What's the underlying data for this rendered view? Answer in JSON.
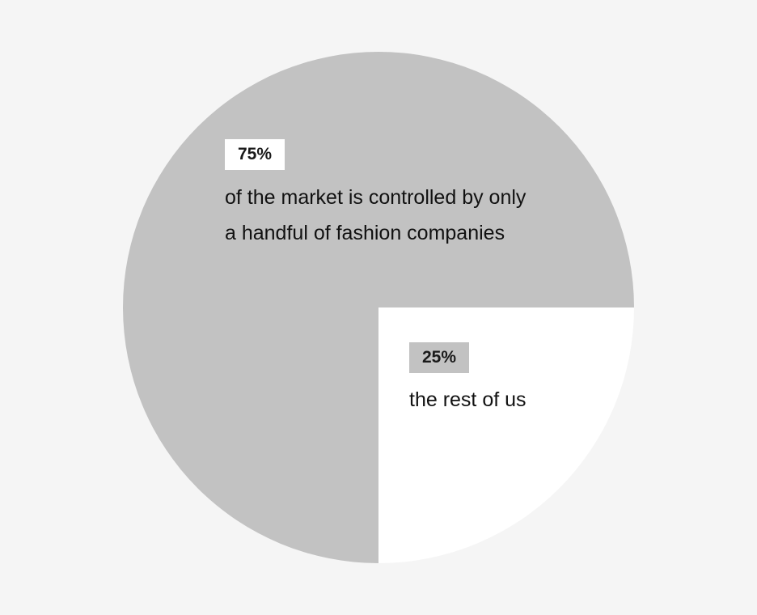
{
  "chart_data": {
    "type": "pie",
    "title": "",
    "slices": [
      {
        "value": 75,
        "label": "75%",
        "description": "of the market is controlled by only a handful of fashion companies",
        "color": "#c2c2c2"
      },
      {
        "value": 25,
        "label": "25%",
        "description": "the rest of us",
        "color": "#ffffff"
      }
    ]
  },
  "colors": {
    "background": "#f5f5f5",
    "major_slice": "#c2c2c2",
    "minor_slice": "#ffffff",
    "text": "#111111"
  }
}
